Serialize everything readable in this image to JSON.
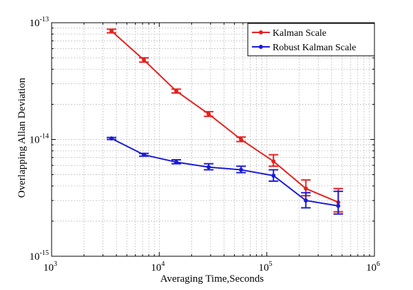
{
  "chart_data": {
    "type": "line",
    "xlabel": "Averaging Time,Seconds",
    "ylabel": "Overlapping Allan Deviation",
    "x_scale": "log",
    "y_scale": "log",
    "xlim": [
      1000,
      1000000
    ],
    "ylim": [
      1e-15,
      1e-13
    ],
    "grid": true,
    "legend_position": "top-right",
    "x_ticks": [
      {
        "value": 1000,
        "base": "10",
        "exp": "3"
      },
      {
        "value": 10000,
        "base": "10",
        "exp": "4"
      },
      {
        "value": 100000,
        "base": "10",
        "exp": "5"
      },
      {
        "value": 1000000,
        "base": "10",
        "exp": "6"
      }
    ],
    "y_ticks": [
      {
        "value": 1e-15,
        "base": "10",
        "exp": "-15"
      },
      {
        "value": 1e-14,
        "base": "10",
        "exp": "-14"
      },
      {
        "value": 1e-13,
        "base": "10",
        "exp": "-13"
      }
    ],
    "series": [
      {
        "name": "Kalman Scale",
        "color": "#e8201e",
        "x": [
          3600,
          7200,
          14400,
          28800,
          57600,
          115200,
          230400,
          460800
        ],
        "y": [
          8.5e-14,
          4.8e-14,
          2.6e-14,
          1.65e-14,
          1e-14,
          6.5e-15,
          3.8e-15,
          2.9e-15
        ],
        "err_low": [
          8.2e-14,
          4.6e-14,
          2.5e-14,
          1.58e-14,
          9.6e-15,
          5.9e-15,
          3.3e-15,
          2.4e-15
        ],
        "err_high": [
          8.8e-14,
          5e-14,
          2.7e-14,
          1.73e-14,
          1.05e-14,
          7.4e-15,
          4.5e-15,
          3.8e-15
        ]
      },
      {
        "name": "Robust Kalman Scale",
        "color": "#1a1ad6",
        "x": [
          3600,
          7200,
          14400,
          28800,
          57600,
          115200,
          230400,
          460800
        ],
        "y": [
          1.02e-14,
          7.4e-15,
          6.4e-15,
          5.8e-15,
          5.5e-15,
          4.9e-15,
          3e-15,
          2.7e-15
        ],
        "err_low": [
          1e-14,
          7.2e-15,
          6.2e-15,
          5.5e-15,
          5.2e-15,
          4.4e-15,
          2.6e-15,
          2.3e-15
        ],
        "err_high": [
          1.04e-14,
          7.6e-15,
          6.7e-15,
          6.2e-15,
          5.9e-15,
          5.5e-15,
          3.5e-15,
          3.6e-15
        ]
      }
    ]
  }
}
